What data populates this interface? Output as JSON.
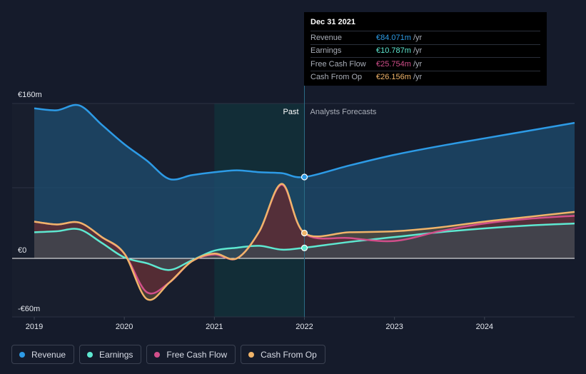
{
  "chart_data": {
    "type": "area",
    "currency_unit": "€m",
    "y_ticks": [
      {
        "value": 160,
        "label": "€160m"
      },
      {
        "value": 0,
        "label": "€0"
      },
      {
        "value": -60,
        "label": "-€60m"
      }
    ],
    "x_ticks": [
      {
        "value": 2019,
        "label": "2019"
      },
      {
        "value": 2020,
        "label": "2020"
      },
      {
        "value": 2021,
        "label": "2021"
      },
      {
        "value": 2022,
        "label": "2022"
      },
      {
        "value": 2023,
        "label": "2023"
      },
      {
        "value": 2024,
        "label": "2024"
      }
    ],
    "xlim": [
      2018.99,
      2025.01
    ],
    "ylim": [
      -60,
      160
    ],
    "divider_year": 2022,
    "past_label": "Past",
    "forecast_label": "Analysts Forecasts",
    "series": [
      {
        "name": "Revenue",
        "color": "#2d9be6",
        "fill": true,
        "fill_color": "#1e4d70",
        "x": [
          2019.0,
          2019.25,
          2019.5,
          2019.75,
          2020.0,
          2020.25,
          2020.5,
          2020.75,
          2021.0,
          2021.25,
          2021.5,
          2021.75,
          2022.0,
          2022.5,
          2023.0,
          2023.5,
          2024.0,
          2024.5,
          2025.0
        ],
        "values": [
          155,
          153,
          158,
          138,
          118,
          101,
          82,
          86,
          89,
          91,
          89,
          88,
          84,
          96,
          107,
          116,
          124,
          132,
          140
        ]
      },
      {
        "name": "Earnings",
        "color": "#5ee8d1",
        "fill": true,
        "fill_color": "#3a4a52",
        "x": [
          2019.0,
          2019.25,
          2019.5,
          2019.75,
          2020.0,
          2020.25,
          2020.5,
          2020.75,
          2021.0,
          2021.25,
          2021.5,
          2021.75,
          2022.0,
          2022.5,
          2023.0,
          2023.5,
          2024.0,
          2024.5,
          2025.0
        ],
        "values": [
          27,
          28,
          30,
          16,
          1,
          -5,
          -12,
          -2,
          8,
          11,
          13,
          9,
          11,
          17,
          22,
          27,
          31,
          34,
          36
        ]
      },
      {
        "name": "Free Cash Flow",
        "color": "#d14e8a",
        "fill": true,
        "fill_color": "#5a2535",
        "x": [
          2019.0,
          2019.25,
          2019.5,
          2019.75,
          2020.0,
          2020.25,
          2020.5,
          2020.75,
          2021.0,
          2021.25,
          2021.5,
          2021.75,
          2022.0,
          2022.5,
          2023.0,
          2023.5,
          2024.0,
          2024.5,
          2025.0
        ],
        "values": [
          38,
          35,
          37,
          22,
          5,
          -35,
          -25,
          -3,
          4,
          0,
          28,
          76,
          25.8,
          21,
          18,
          28,
          36,
          41,
          44
        ]
      },
      {
        "name": "Cash From Op",
        "color": "#f0b46a",
        "fill": true,
        "fill_color": "#5a4a38",
        "x": [
          2019.0,
          2019.25,
          2019.5,
          2019.75,
          2020.0,
          2020.25,
          2020.5,
          2020.75,
          2021.0,
          2021.25,
          2021.5,
          2021.75,
          2022.0,
          2022.5,
          2023.0,
          2023.5,
          2024.0,
          2024.5,
          2025.0
        ],
        "values": [
          38,
          35,
          37,
          22,
          5,
          -42,
          -25,
          -3,
          5,
          0,
          28,
          77,
          26.2,
          27,
          28,
          32,
          38,
          43,
          48
        ]
      }
    ],
    "highlight": {
      "date": "Dec 31 2021",
      "x": 2022,
      "rows": [
        {
          "name": "Revenue",
          "value_label": "€84.071m",
          "value": 84.071,
          "color": "#2d9be6"
        },
        {
          "name": "Earnings",
          "value_label": "€10.787m",
          "value": 10.787,
          "color": "#5ee8d1"
        },
        {
          "name": "Free Cash Flow",
          "value_label": "€25.754m",
          "value": 25.754,
          "color": "#d14e8a"
        },
        {
          "name": "Cash From Op",
          "value_label": "€26.156m",
          "value": 26.156,
          "color": "#f0b46a"
        }
      ],
      "unit": "/yr"
    }
  },
  "legend": [
    {
      "label": "Revenue",
      "color": "#2d9be6"
    },
    {
      "label": "Earnings",
      "color": "#5ee8d1"
    },
    {
      "label": "Free Cash Flow",
      "color": "#d14e8a"
    },
    {
      "label": "Cash From Op",
      "color": "#f0b46a"
    }
  ]
}
